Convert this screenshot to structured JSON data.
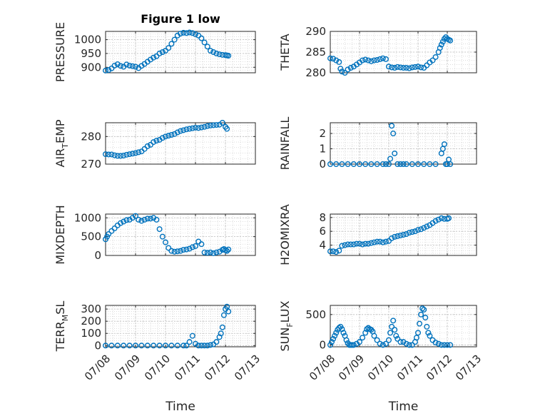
{
  "chart_data": [
    {
      "type": "scatter",
      "title": "Figure 1 low",
      "ylabel": "PRESSURE",
      "xlim": [
        "07/08",
        "07/13"
      ],
      "ylim": [
        880,
        1030
      ],
      "yticks": [
        900,
        950,
        1000
      ],
      "xticks": [],
      "grid": "major+minor",
      "x": [
        8.0,
        8.1,
        8.2,
        8.3,
        8.4,
        8.5,
        8.6,
        8.7,
        8.8,
        8.9,
        9.0,
        9.1,
        9.2,
        9.3,
        9.4,
        9.5,
        9.6,
        9.7,
        9.8,
        9.9,
        10.0,
        10.1,
        10.2,
        10.3,
        10.4,
        10.5,
        10.6,
        10.7,
        10.8,
        10.9,
        11.0,
        11.1,
        11.2,
        11.3,
        11.4,
        11.5,
        11.6,
        11.7,
        11.8,
        11.9,
        12.0,
        12.05,
        12.1
      ],
      "y": [
        888,
        890,
        896,
        906,
        911,
        905,
        902,
        910,
        906,
        904,
        902,
        897,
        905,
        912,
        920,
        928,
        935,
        940,
        950,
        955,
        960,
        970,
        985,
        1000,
        1015,
        1022,
        1025,
        1024,
        1026,
        1024,
        1020,
        1015,
        1005,
        990,
        975,
        960,
        955,
        950,
        947,
        945,
        944,
        943,
        942
      ]
    },
    {
      "type": "scatter",
      "ylabel": "THETA",
      "xlim": [
        "07/08",
        "07/13"
      ],
      "ylim": [
        280,
        290
      ],
      "yticks": [
        280,
        285,
        290
      ],
      "xticks": [],
      "grid": "major+minor",
      "x": [
        8.0,
        8.1,
        8.2,
        8.3,
        8.35,
        8.4,
        8.5,
        8.6,
        8.7,
        8.8,
        8.9,
        9.0,
        9.1,
        9.2,
        9.3,
        9.4,
        9.5,
        9.6,
        9.7,
        9.8,
        9.9,
        10.0,
        10.1,
        10.2,
        10.3,
        10.4,
        10.5,
        10.6,
        10.7,
        10.8,
        10.9,
        11.0,
        11.1,
        11.2,
        11.3,
        11.4,
        11.5,
        11.6,
        11.7,
        11.75,
        11.8,
        11.85,
        11.9,
        11.95,
        12.0,
        12.05,
        12.1
      ],
      "y": [
        283.5,
        283.4,
        283,
        282.6,
        281,
        280.3,
        280,
        280.8,
        281.2,
        281.5,
        282,
        282.5,
        283,
        283.2,
        283,
        282.8,
        283,
        283.1,
        283.3,
        283.5,
        283.3,
        281.5,
        281.3,
        281.2,
        281.4,
        281.3,
        281.2,
        281.2,
        281.1,
        281.3,
        281.4,
        281.5,
        281.3,
        281.2,
        281.8,
        282.5,
        283,
        283.8,
        285,
        286,
        286.8,
        287.5,
        288.2,
        288.6,
        288.2,
        288,
        287.8
      ]
    },
    {
      "type": "scatter",
      "ylabel": "AIR_TEMP",
      "ylabel_parts": [
        "AIR",
        "T",
        "EMP"
      ],
      "xlim": [
        "07/08",
        "07/13"
      ],
      "ylim": [
        270,
        285
      ],
      "yticks": [
        270,
        280
      ],
      "xticks": [],
      "grid": "major+minor",
      "x": [
        8.0,
        8.1,
        8.2,
        8.3,
        8.4,
        8.5,
        8.6,
        8.7,
        8.8,
        8.9,
        9.0,
        9.1,
        9.2,
        9.3,
        9.4,
        9.5,
        9.6,
        9.7,
        9.8,
        9.9,
        10.0,
        10.1,
        10.2,
        10.3,
        10.4,
        10.5,
        10.6,
        10.7,
        10.8,
        10.9,
        11.0,
        11.1,
        11.2,
        11.3,
        11.4,
        11.5,
        11.6,
        11.7,
        11.8,
        11.9,
        12.0,
        12.05
      ],
      "y": [
        273.6,
        273.5,
        273.5,
        273.2,
        273.0,
        273.0,
        273.1,
        273.4,
        273.6,
        273.8,
        274.0,
        274.3,
        274.6,
        275.5,
        276.5,
        277.0,
        278.0,
        278.5,
        278.8,
        279.5,
        280.0,
        280.3,
        280.6,
        280.9,
        281.5,
        282.0,
        282.3,
        282.6,
        282.8,
        283.0,
        283.2,
        283.1,
        283.3,
        283.5,
        283.8,
        284.0,
        284.1,
        284.2,
        284.3,
        285.0,
        283.5,
        282.8
      ]
    },
    {
      "type": "scatter",
      "ylabel": "RAINFALL",
      "xlim": [
        "07/08",
        "07/13"
      ],
      "ylim": [
        0,
        2.7
      ],
      "yticks": [
        0,
        1,
        2
      ],
      "xticks": [],
      "grid": "major+minor",
      "x": [
        8.0,
        8.2,
        8.4,
        8.6,
        8.8,
        9.0,
        9.2,
        9.4,
        9.6,
        9.8,
        9.9,
        10.0,
        10.05,
        10.1,
        10.15,
        10.2,
        10.3,
        10.4,
        10.5,
        10.6,
        10.8,
        11.0,
        11.2,
        11.4,
        11.6,
        11.8,
        11.85,
        11.9,
        11.95,
        12.0,
        12.05,
        12.1
      ],
      "y": [
        0,
        0,
        0,
        0,
        0,
        0,
        0,
        0,
        0,
        0,
        0,
        0,
        0.35,
        2.5,
        2.0,
        0.7,
        0,
        0,
        0,
        0,
        0,
        0,
        0,
        0,
        0,
        0.7,
        1.0,
        1.3,
        0,
        0,
        0.3,
        0
      ]
    },
    {
      "type": "scatter",
      "ylabel": "MIXDEPTH",
      "xlim": [
        "07/08",
        "07/13"
      ],
      "ylim": [
        0,
        1100
      ],
      "yticks": [
        0,
        500,
        1000
      ],
      "xticks": [],
      "grid": "major+minor",
      "x": [
        8.0,
        8.05,
        8.1,
        8.2,
        8.3,
        8.4,
        8.5,
        8.6,
        8.7,
        8.8,
        8.9,
        9.0,
        9.1,
        9.2,
        9.3,
        9.4,
        9.5,
        9.6,
        9.7,
        9.8,
        9.9,
        10.0,
        10.1,
        10.2,
        10.3,
        10.4,
        10.5,
        10.6,
        10.7,
        10.8,
        10.9,
        11.0,
        11.1,
        11.2,
        11.3,
        11.4,
        11.5,
        11.6,
        11.7,
        11.8,
        11.9,
        11.95,
        12.0,
        12.05,
        12.1
      ],
      "y": [
        430,
        500,
        570,
        650,
        720,
        800,
        860,
        900,
        940,
        950,
        1000,
        1050,
        950,
        920,
        950,
        980,
        980,
        1000,
        950,
        700,
        500,
        350,
        200,
        120,
        100,
        110,
        120,
        150,
        160,
        180,
        220,
        250,
        370,
        300,
        80,
        70,
        80,
        60,
        80,
        100,
        150,
        170,
        140,
        120,
        160
      ]
    },
    {
      "type": "scatter",
      "ylabel": "H2OMIXRA",
      "xlim": [
        "07/08",
        "07/13"
      ],
      "ylim": [
        2.5,
        8.5
      ],
      "yticks": [
        4,
        6,
        8
      ],
      "xticks": [],
      "grid": "major+minor",
      "x": [
        8.0,
        8.1,
        8.2,
        8.3,
        8.4,
        8.5,
        8.6,
        8.7,
        8.8,
        8.9,
        9.0,
        9.1,
        9.2,
        9.3,
        9.4,
        9.5,
        9.6,
        9.7,
        9.8,
        9.9,
        10.0,
        10.1,
        10.2,
        10.3,
        10.4,
        10.5,
        10.6,
        10.7,
        10.8,
        10.9,
        11.0,
        11.1,
        11.2,
        11.3,
        11.4,
        11.5,
        11.6,
        11.7,
        11.8,
        11.9,
        12.0,
        12.05
      ],
      "y": [
        3.1,
        3.1,
        3.0,
        3.2,
        3.9,
        4.0,
        4.1,
        4.1,
        4.1,
        4.2,
        4.2,
        4.1,
        4.2,
        4.2,
        4.3,
        4.4,
        4.5,
        4.5,
        4.4,
        4.5,
        4.6,
        5.0,
        5.2,
        5.3,
        5.4,
        5.5,
        5.6,
        5.8,
        5.9,
        6.0,
        6.2,
        6.3,
        6.5,
        6.7,
        6.9,
        7.2,
        7.5,
        7.7,
        7.9,
        7.8,
        7.8,
        7.9
      ]
    },
    {
      "type": "scatter",
      "ylabel": "TERR_MSL",
      "ylabel_parts": [
        "TERR",
        "M",
        "SL"
      ],
      "xlim": [
        "07/08",
        "07/13"
      ],
      "ylim": [
        -10,
        330
      ],
      "yticks": [
        0,
        100,
        200,
        300
      ],
      "xticklabels": [
        "07/08",
        "07/09",
        "07/10",
        "07/11",
        "07/12",
        "07/13"
      ],
      "xlabel": "Time",
      "grid": "major+minor",
      "x": [
        8.0,
        8.2,
        8.4,
        8.6,
        8.8,
        9.0,
        9.2,
        9.4,
        9.6,
        9.8,
        10.0,
        10.2,
        10.4,
        10.6,
        10.7,
        10.8,
        10.9,
        11.0,
        11.1,
        11.2,
        11.3,
        11.4,
        11.5,
        11.6,
        11.7,
        11.8,
        11.85,
        11.9,
        11.95,
        12.0,
        12.05,
        12.1
      ],
      "y": [
        0,
        0,
        0,
        0,
        0,
        0,
        0,
        0,
        0,
        0,
        0,
        0,
        0,
        0,
        0,
        30,
        80,
        15,
        0,
        0,
        0,
        0,
        5,
        10,
        30,
        70,
        100,
        150,
        250,
        300,
        320,
        280
      ]
    },
    {
      "type": "scatter",
      "ylabel": "SUN_FLUX",
      "ylabel_parts": [
        "SUN",
        "F",
        "LUX"
      ],
      "xlim": [
        "07/08",
        "07/13"
      ],
      "ylim": [
        -30,
        650
      ],
      "yticks": [
        0,
        500
      ],
      "xticklabels": [
        "07/08",
        "07/09",
        "07/10",
        "07/11",
        "07/12",
        "07/13"
      ],
      "xlabel": "Time",
      "grid": "major+minor",
      "x": [
        8.0,
        8.05,
        8.1,
        8.15,
        8.2,
        8.25,
        8.3,
        8.35,
        8.4,
        8.45,
        8.5,
        8.55,
        8.6,
        8.65,
        8.7,
        8.75,
        8.8,
        8.9,
        9.0,
        9.1,
        9.2,
        9.25,
        9.3,
        9.35,
        9.4,
        9.45,
        9.5,
        9.6,
        9.7,
        9.8,
        9.9,
        10.0,
        10.05,
        10.1,
        10.15,
        10.2,
        10.25,
        10.3,
        10.4,
        10.5,
        10.6,
        10.7,
        10.8,
        10.9,
        10.95,
        11.0,
        11.05,
        11.1,
        11.15,
        11.2,
        11.25,
        11.3,
        11.35,
        11.4,
        11.5,
        11.6,
        11.7,
        11.8,
        11.9,
        12.0,
        12.1
      ],
      "y": [
        0,
        50,
        100,
        150,
        200,
        250,
        280,
        300,
        260,
        200,
        150,
        80,
        30,
        0,
        0,
        0,
        0,
        20,
        50,
        120,
        200,
        260,
        280,
        260,
        250,
        220,
        150,
        80,
        20,
        0,
        20,
        80,
        200,
        300,
        400,
        250,
        150,
        100,
        50,
        50,
        20,
        0,
        0,
        50,
        120,
        200,
        350,
        500,
        600,
        580,
        450,
        300,
        200,
        150,
        80,
        40,
        20,
        0,
        0,
        0,
        0
      ]
    }
  ]
}
